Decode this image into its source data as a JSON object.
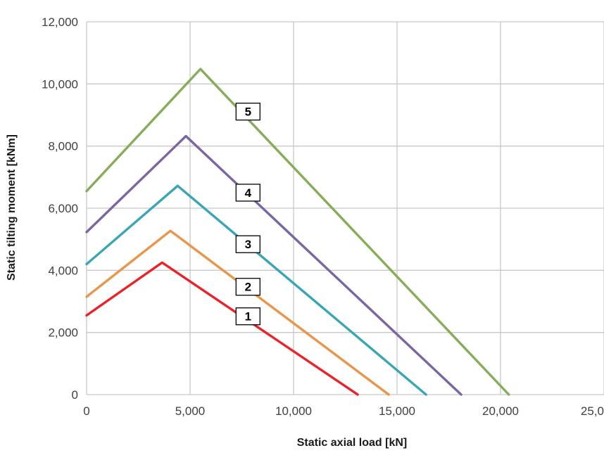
{
  "chart_data": {
    "type": "line",
    "title": "",
    "xlabel": "Static axial load [kN]",
    "ylabel": "Static tilting moment [kNm]",
    "xlim": [
      0,
      25000
    ],
    "ylim": [
      0,
      12000
    ],
    "x_ticks": [
      "0",
      "5,000",
      "10,000",
      "15,000",
      "20,000",
      "25,0"
    ],
    "y_ticks": [
      "0",
      "2,000",
      "4,000",
      "6,000",
      "8,000",
      "10,000",
      "12,000"
    ],
    "grid": true,
    "legend": "none",
    "series": [
      {
        "name": "1",
        "color": "#e8232a",
        "x": [
          0,
          3650,
          13100
        ],
        "y": [
          2550,
          4250,
          0
        ]
      },
      {
        "name": "2",
        "color": "#e8964a",
        "x": [
          0,
          4050,
          14600
        ],
        "y": [
          3150,
          5270,
          0
        ]
      },
      {
        "name": "3",
        "color": "#3aa5b4",
        "x": [
          0,
          4400,
          16400
        ],
        "y": [
          4200,
          6720,
          0
        ]
      },
      {
        "name": "4",
        "color": "#7b66a3",
        "x": [
          0,
          4800,
          18100
        ],
        "y": [
          5230,
          8320,
          0
        ]
      },
      {
        "name": "5",
        "color": "#86ad59",
        "x": [
          0,
          5500,
          20400
        ],
        "y": [
          6550,
          10480,
          0
        ]
      }
    ],
    "annotations": [
      {
        "text": "1",
        "x": 7800,
        "y": 2520
      },
      {
        "text": "2",
        "x": 7800,
        "y": 3470
      },
      {
        "text": "3",
        "x": 7800,
        "y": 4840
      },
      {
        "text": "4",
        "x": 7800,
        "y": 6500
      },
      {
        "text": "5",
        "x": 7800,
        "y": 9110
      }
    ]
  }
}
